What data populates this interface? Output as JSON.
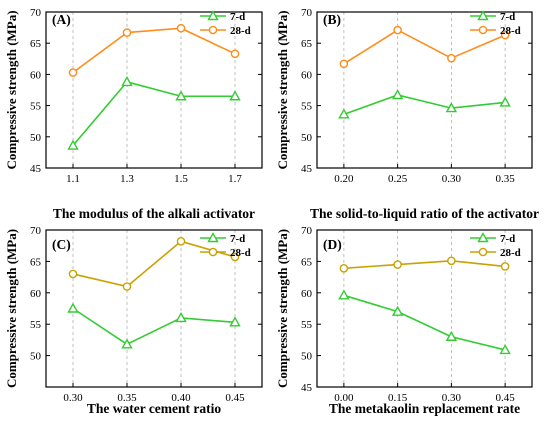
{
  "colors": {
    "seven_day": "#33cc33",
    "twentyeight_day_orange": "#ff8c1a",
    "twentyeight_day_olive": "#c9a200",
    "grid": "#b0b0b0",
    "axis": "#000000"
  },
  "chart_data": [
    {
      "type": "line",
      "panel_label": "(A)",
      "xlabel": "The modulus of the alkali activator",
      "ylabel": "Compressive strength (MPa)",
      "categories": [
        "1.1",
        "1.3",
        "1.5",
        "1.7"
      ],
      "ylim": [
        45,
        70
      ],
      "yticks": [
        45,
        50,
        55,
        60,
        65,
        70
      ],
      "ytick_labels": [
        "45",
        "50",
        "55",
        "60",
        "65",
        "70"
      ],
      "grid": "vertical dashed",
      "legend_position": "top-right",
      "series": [
        {
          "name": "7-d",
          "marker": "triangle",
          "color": "#33cc33",
          "values": [
            48.6,
            58.8,
            56.5,
            56.5
          ]
        },
        {
          "name": "28-d",
          "marker": "circle",
          "color": "#ff8c1a",
          "values": [
            60.3,
            66.7,
            67.4,
            63.3
          ]
        }
      ]
    },
    {
      "type": "line",
      "panel_label": "(B)",
      "xlabel": "The solid-to-liquid ratio of the activator",
      "ylabel": "Compressive strength (MPa)",
      "categories": [
        "0.20",
        "0.25",
        "0.30",
        "0.35"
      ],
      "ylim": [
        45,
        70
      ],
      "yticks": [
        45,
        50,
        55,
        60,
        65,
        70
      ],
      "ytick_labels": [
        "45",
        "50",
        "55",
        "60",
        "65",
        "70"
      ],
      "grid": "vertical dashed",
      "legend_position": "top-right",
      "series": [
        {
          "name": "7-d",
          "marker": "triangle",
          "color": "#33cc33",
          "values": [
            53.6,
            56.7,
            54.6,
            55.5
          ]
        },
        {
          "name": "28-d",
          "marker": "circle",
          "color": "#ff8c1a",
          "values": [
            61.7,
            67.1,
            62.6,
            66.3
          ]
        }
      ]
    },
    {
      "type": "line",
      "panel_label": "(C)",
      "xlabel": "The water cement ratio",
      "ylabel": "Compressive strength (MPa)",
      "categories": [
        "0.30",
        "0.35",
        "0.40",
        "0.45"
      ],
      "ylim": [
        45,
        70
      ],
      "yticks": [
        50,
        55,
        60,
        65,
        70
      ],
      "ytick_labels": [
        "50",
        "55",
        "60",
        "65",
        "70"
      ],
      "grid": "vertical dashed",
      "legend_position": "top-right",
      "series": [
        {
          "name": "7-d",
          "marker": "triangle",
          "color": "#33cc33",
          "values": [
            57.5,
            51.8,
            56.0,
            55.3
          ]
        },
        {
          "name": "28-d",
          "marker": "circle",
          "color": "#c9a200",
          "values": [
            63.0,
            61.0,
            68.2,
            65.7
          ]
        }
      ]
    },
    {
      "type": "line",
      "panel_label": "(D)",
      "xlabel": "The metakaolin replacement rate",
      "ylabel": "Compressive strength (MPa)",
      "categories": [
        "0.00",
        "0.15",
        "0.30",
        "0.45"
      ],
      "ylim": [
        45,
        70
      ],
      "yticks": [
        45,
        50,
        55,
        60,
        65,
        70
      ],
      "ytick_labels": [
        "45",
        "50",
        "55",
        "60",
        "65",
        "70"
      ],
      "grid": "vertical dashed",
      "legend_position": "top-right",
      "series": [
        {
          "name": "7-d",
          "marker": "triangle",
          "color": "#33cc33",
          "values": [
            59.6,
            57.0,
            53.0,
            50.9
          ]
        },
        {
          "name": "28-d",
          "marker": "circle",
          "color": "#c9a200",
          "values": [
            63.9,
            64.5,
            65.1,
            64.2
          ]
        }
      ]
    }
  ]
}
